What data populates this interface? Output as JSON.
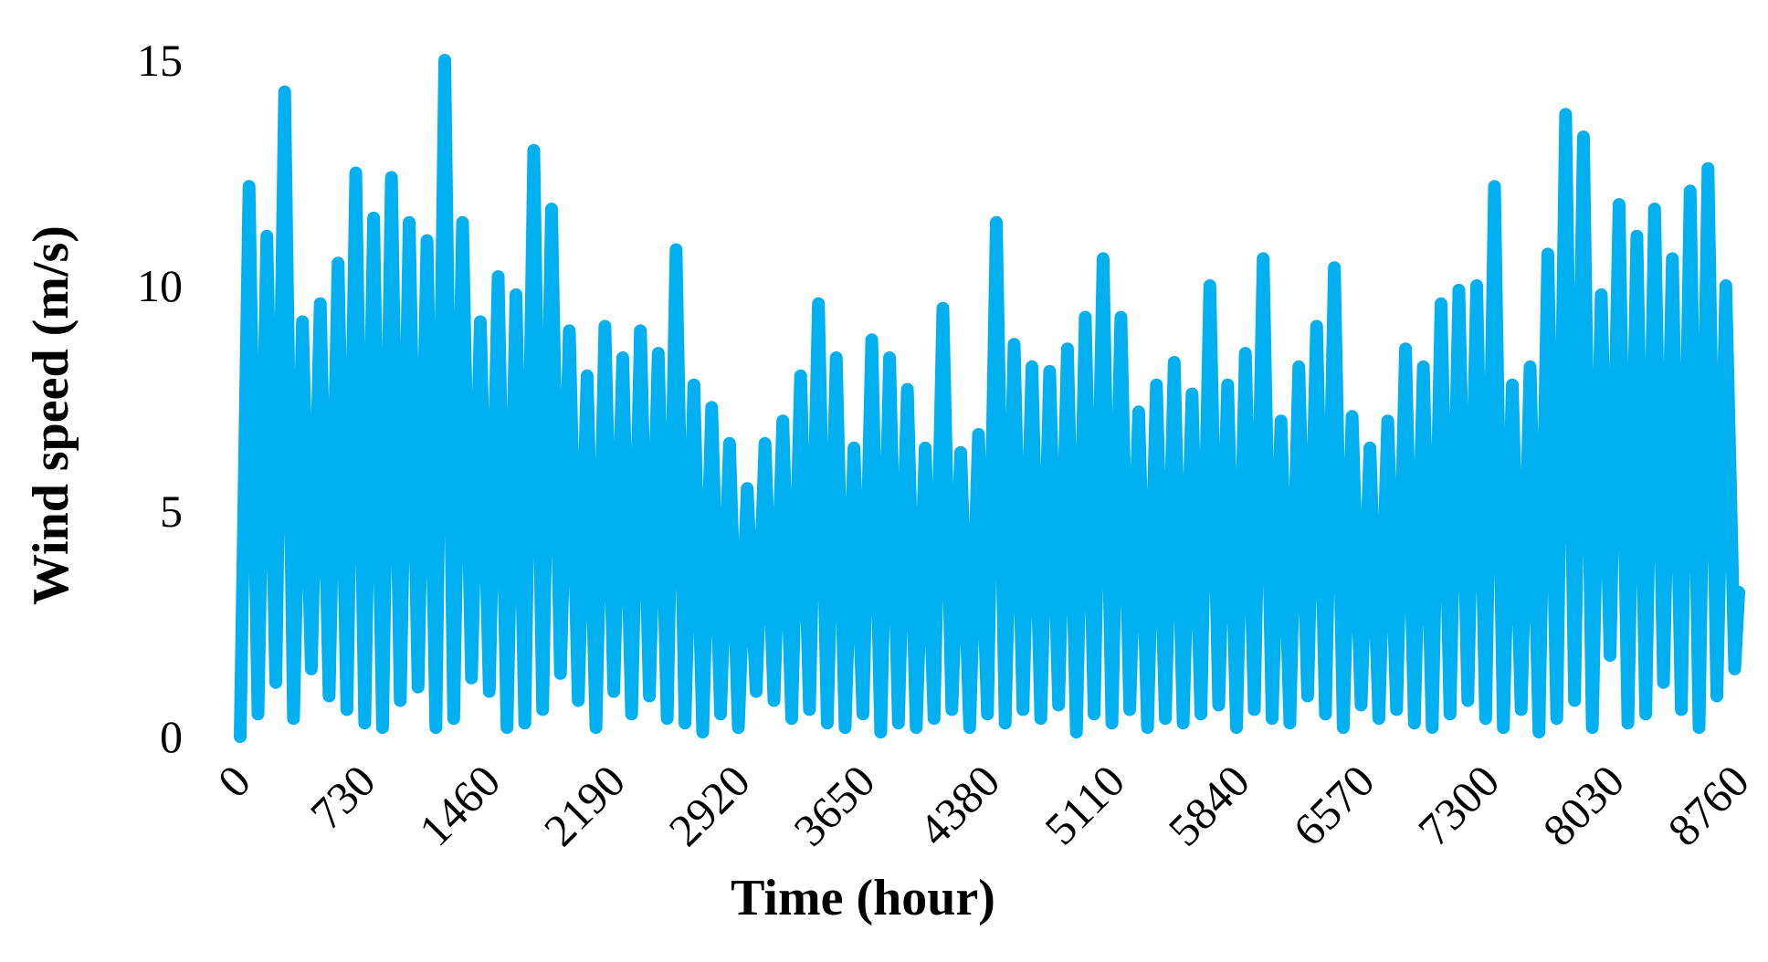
{
  "chart_data": {
    "type": "line",
    "x_label": "Time (hour)",
    "y_label": "Wind speed (m/s)",
    "xlim": [
      0,
      8760
    ],
    "ylim": [
      0,
      15
    ],
    "xticks": [
      0,
      730,
      1460,
      2190,
      2920,
      3650,
      4380,
      5110,
      5840,
      6570,
      7300,
      8030,
      8760
    ],
    "yticks": [
      0,
      5,
      10,
      15
    ],
    "x": [
      0,
      52,
      104,
      156,
      208,
      260,
      312,
      364,
      416,
      468,
      520,
      572,
      624,
      676,
      728,
      780,
      832,
      884,
      936,
      988,
      1040,
      1092,
      1144,
      1196,
      1248,
      1300,
      1352,
      1404,
      1456,
      1508,
      1560,
      1612,
      1664,
      1716,
      1768,
      1820,
      1872,
      1924,
      1976,
      2028,
      2080,
      2132,
      2184,
      2236,
      2288,
      2340,
      2392,
      2444,
      2496,
      2548,
      2600,
      2652,
      2704,
      2756,
      2808,
      2860,
      2912,
      2964,
      3016,
      3068,
      3120,
      3172,
      3224,
      3276,
      3328,
      3380,
      3432,
      3484,
      3536,
      3588,
      3640,
      3692,
      3744,
      3796,
      3848,
      3900,
      3952,
      4004,
      4056,
      4108,
      4160,
      4212,
      4264,
      4316,
      4368,
      4420,
      4472,
      4524,
      4576,
      4628,
      4680,
      4732,
      4784,
      4836,
      4888,
      4940,
      4992,
      5044,
      5096,
      5148,
      5200,
      5252,
      5304,
      5356,
      5408,
      5460,
      5512,
      5564,
      5616,
      5668,
      5720,
      5772,
      5824,
      5876,
      5928,
      5980,
      6032,
      6084,
      6136,
      6188,
      6240,
      6292,
      6344,
      6396,
      6448,
      6500,
      6552,
      6604,
      6656,
      6708,
      6760,
      6812,
      6864,
      6916,
      6968,
      7020,
      7072,
      7124,
      7176,
      7228,
      7280,
      7332,
      7384,
      7436,
      7488,
      7540,
      7592,
      7644,
      7696,
      7748,
      7800,
      7852,
      7904,
      7956,
      8008,
      8060,
      8112,
      8164,
      8216,
      8268,
      8320,
      8372,
      8424,
      8476,
      8528,
      8580,
      8632,
      8684,
      8736,
      8760
    ],
    "series": [
      {
        "color": "#00b0f0",
        "values": [
          0,
          12.2,
          0.5,
          11.1,
          1.2,
          14.3,
          0.4,
          9.2,
          1.5,
          9.6,
          0.9,
          10.5,
          0.6,
          12.5,
          0.3,
          11.5,
          0.2,
          12.4,
          0.8,
          11.4,
          1.1,
          11,
          0.2,
          15,
          0.4,
          11.4,
          1.3,
          9.2,
          1.0,
          10.2,
          0.2,
          9.8,
          0.3,
          13,
          0.6,
          11.7,
          1.4,
          9,
          0.8,
          8,
          0.2,
          9.1,
          1.0,
          8.4,
          0.5,
          9,
          0.9,
          8.5,
          0.4,
          10.8,
          0.3,
          7.8,
          0.1,
          7.3,
          0.5,
          6.5,
          0.2,
          5.5,
          1.0,
          6.5,
          0.8,
          7,
          0.4,
          8,
          0.6,
          9.6,
          0.3,
          8.4,
          0.2,
          6.4,
          0.5,
          8.8,
          0.1,
          8.4,
          0.3,
          7.7,
          0.2,
          6.4,
          0.4,
          9.5,
          0.6,
          6.3,
          0.2,
          6.7,
          0.5,
          11.4,
          0.3,
          8.7,
          0.6,
          8.2,
          0.4,
          8.1,
          0.7,
          8.6,
          0.1,
          9.3,
          0.5,
          10.6,
          0.3,
          9.3,
          0.6,
          7.2,
          0.2,
          7.8,
          0.4,
          8.3,
          0.3,
          7.6,
          0.5,
          10,
          0.7,
          7.8,
          0.2,
          8.5,
          0.6,
          10.6,
          0.4,
          7,
          0.3,
          8.2,
          0.9,
          9.1,
          0.5,
          10.4,
          0.2,
          7.1,
          0.7,
          6.4,
          0.4,
          7,
          0.6,
          8.6,
          0.3,
          8.2,
          0.2,
          9.6,
          0.5,
          9.9,
          0.8,
          10,
          0.4,
          12.2,
          0.2,
          7.8,
          0.6,
          8.2,
          0.1,
          10.7,
          0.4,
          13.8,
          0.8,
          13.3,
          0.2,
          9.8,
          1.8,
          11.8,
          0.3,
          11.1,
          0.5,
          11.7,
          1.2,
          10.6,
          0.6,
          12.1,
          0.2,
          12.6,
          0.9,
          10,
          1.5,
          3.2
        ]
      }
    ]
  }
}
